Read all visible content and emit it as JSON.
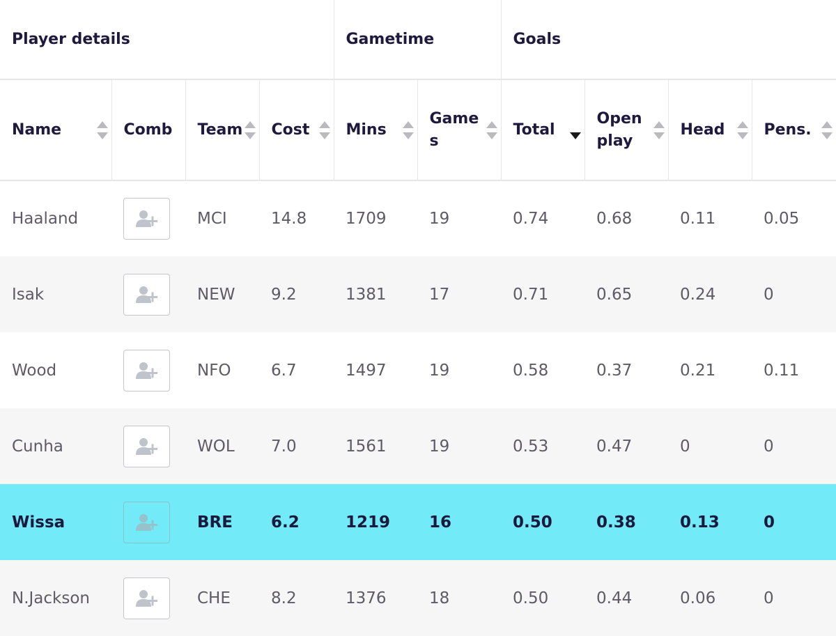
{
  "group_headers": [
    {
      "label": "Player details"
    },
    {
      "label": "Gametime"
    },
    {
      "label": "Goals"
    }
  ],
  "columns": [
    {
      "label": "Name",
      "sortable": true
    },
    {
      "label": "Comb",
      "sortable": false
    },
    {
      "label": "Team",
      "sortable": true
    },
    {
      "label": "Cost",
      "sortable": true
    },
    {
      "label": "Mins",
      "sortable": true
    },
    {
      "label": "Game s",
      "sortable": true
    },
    {
      "label": "Total",
      "sortable": true,
      "sort_state": "descending"
    },
    {
      "label": "Open play",
      "sortable": true
    },
    {
      "label": "Head",
      "sortable": true
    },
    {
      "label": "Pens.",
      "sortable": true
    }
  ],
  "rows": [
    {
      "name": "Haaland",
      "team": "MCI",
      "cost": "14.8",
      "mins": "1709",
      "games": "19",
      "total": "0.74",
      "open_play": "0.68",
      "head": "0.11",
      "pens": "0.05",
      "highlighted": false
    },
    {
      "name": "Isak",
      "team": "NEW",
      "cost": "9.2",
      "mins": "1381",
      "games": "17",
      "total": "0.71",
      "open_play": "0.65",
      "head": "0.24",
      "pens": "0",
      "highlighted": false
    },
    {
      "name": "Wood",
      "team": "NFO",
      "cost": "6.7",
      "mins": "1497",
      "games": "19",
      "total": "0.58",
      "open_play": "0.37",
      "head": "0.21",
      "pens": "0.11",
      "highlighted": false
    },
    {
      "name": "Cunha",
      "team": "WOL",
      "cost": "7.0",
      "mins": "1561",
      "games": "19",
      "total": "0.53",
      "open_play": "0.47",
      "head": "0",
      "pens": "0",
      "highlighted": false
    },
    {
      "name": "Wissa",
      "team": "BRE",
      "cost": "6.2",
      "mins": "1219",
      "games": "16",
      "total": "0.50",
      "open_play": "0.38",
      "head": "0.13",
      "pens": "0",
      "highlighted": true
    },
    {
      "name": "N.Jackson",
      "team": "CHE",
      "cost": "8.2",
      "mins": "1376",
      "games": "18",
      "total": "0.50",
      "open_play": "0.44",
      "head": "0.06",
      "pens": "0",
      "highlighted": false
    }
  ],
  "comb_button_icon": "add-user-icon",
  "colors": {
    "highlight_row": "#73eaf8",
    "alt_row": "#f6f6f6",
    "header_text": "#1f1a3d",
    "cell_text": "#5e5a66"
  }
}
